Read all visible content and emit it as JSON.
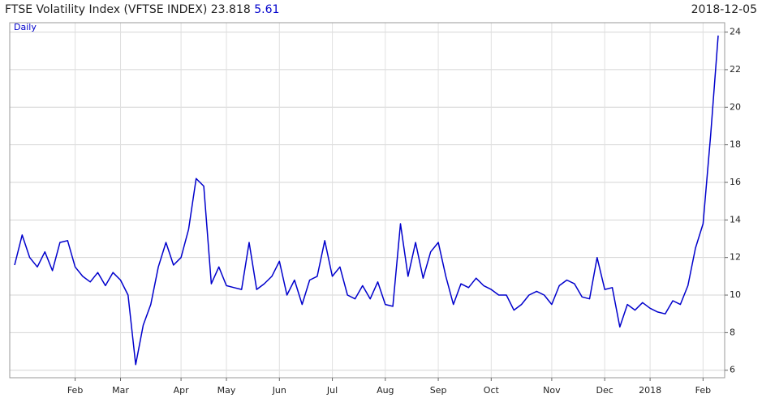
{
  "chart_data": {
    "type": "line",
    "title": "FTSE Volatility Index (VFTSE INDEX)",
    "last": "23.818",
    "change": "5.61",
    "date": "2018-12-05",
    "period": "Daily",
    "categories": [
      null,
      null,
      null,
      null,
      null,
      null,
      null,
      null,
      "Feb",
      null,
      null,
      null,
      null,
      null,
      "Mar",
      null,
      null,
      null,
      null,
      null,
      null,
      null,
      "Apr",
      null,
      null,
      null,
      null,
      null,
      "May",
      null,
      null,
      null,
      null,
      null,
      null,
      "Jun",
      null,
      null,
      null,
      null,
      null,
      null,
      "Jul",
      null,
      null,
      null,
      null,
      null,
      null,
      "Aug",
      null,
      null,
      null,
      null,
      null,
      null,
      "Sep",
      null,
      null,
      null,
      null,
      null,
      null,
      "Oct",
      null,
      null,
      null,
      null,
      null,
      null,
      null,
      "Nov",
      null,
      null,
      null,
      null,
      null,
      null,
      "Dec",
      null,
      null,
      null,
      null,
      null,
      "2018",
      null,
      null,
      null,
      null,
      null,
      null,
      "Feb",
      null,
      null
    ],
    "series": [
      {
        "name": "VFTSE",
        "color": "#0000cc",
        "values": [
          11.6,
          13.2,
          12.0,
          11.5,
          12.3,
          11.3,
          12.8,
          12.9,
          11.5,
          11.0,
          10.7,
          11.2,
          10.5,
          11.2,
          10.8,
          10.0,
          6.3,
          8.4,
          9.5,
          11.5,
          12.8,
          11.6,
          12.0,
          13.5,
          16.2,
          15.8,
          10.6,
          11.5,
          10.5,
          10.4,
          10.3,
          12.8,
          10.3,
          10.6,
          11.0,
          11.8,
          10.0,
          10.8,
          9.5,
          10.8,
          11.0,
          12.9,
          11.0,
          11.5,
          10.0,
          9.8,
          10.5,
          9.8,
          10.7,
          9.5,
          9.4,
          13.8,
          11.0,
          12.8,
          10.9,
          12.3,
          12.8,
          11.0,
          9.5,
          10.6,
          10.4,
          10.9,
          10.5,
          10.3,
          10.0,
          10.0,
          9.2,
          9.5,
          10.0,
          10.2,
          10.0,
          9.5,
          10.5,
          10.8,
          10.6,
          9.9,
          9.8,
          12.0,
          10.3,
          10.4,
          8.3,
          9.5,
          9.2,
          9.6,
          9.3,
          9.1,
          9.0,
          9.7,
          9.5,
          10.5,
          12.5,
          13.8,
          18.5,
          23.818
        ]
      }
    ],
    "ylim": [
      5.6,
      24.5
    ],
    "yticks": [
      6,
      8,
      10,
      12,
      14,
      16,
      18,
      20,
      22,
      24
    ],
    "grid": true
  }
}
